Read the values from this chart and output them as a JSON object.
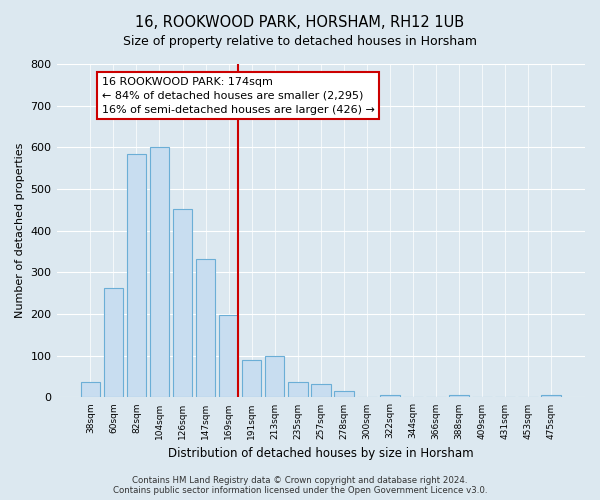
{
  "title": "16, ROOKWOOD PARK, HORSHAM, RH12 1UB",
  "subtitle": "Size of property relative to detached houses in Horsham",
  "xlabel": "Distribution of detached houses by size in Horsham",
  "ylabel": "Number of detached properties",
  "bar_labels": [
    "38sqm",
    "60sqm",
    "82sqm",
    "104sqm",
    "126sqm",
    "147sqm",
    "169sqm",
    "191sqm",
    "213sqm",
    "235sqm",
    "257sqm",
    "278sqm",
    "300sqm",
    "322sqm",
    "344sqm",
    "366sqm",
    "388sqm",
    "409sqm",
    "431sqm",
    "453sqm",
    "475sqm"
  ],
  "bar_values": [
    38,
    263,
    584,
    602,
    452,
    333,
    197,
    90,
    100,
    38,
    32,
    15,
    0,
    5,
    0,
    0,
    5,
    0,
    0,
    0,
    5
  ],
  "bar_color": "#c8ddf0",
  "bar_edge_color": "#6baed6",
  "vline_color": "#cc0000",
  "annotation_title": "16 ROOKWOOD PARK: 174sqm",
  "annotation_line1": "← 84% of detached houses are smaller (2,295)",
  "annotation_line2": "16% of semi-detached houses are larger (426) →",
  "annotation_box_facecolor": "#ffffff",
  "annotation_box_edgecolor": "#cc0000",
  "footer_line1": "Contains HM Land Registry data © Crown copyright and database right 2024.",
  "footer_line2": "Contains public sector information licensed under the Open Government Licence v3.0.",
  "ylim": [
    0,
    800
  ],
  "yticks": [
    0,
    100,
    200,
    300,
    400,
    500,
    600,
    700,
    800
  ],
  "fig_bg_color": "#dce8f0",
  "plot_bg_color": "#dce8f0",
  "grid_color": "#ffffff",
  "vline_bar_index": 6
}
